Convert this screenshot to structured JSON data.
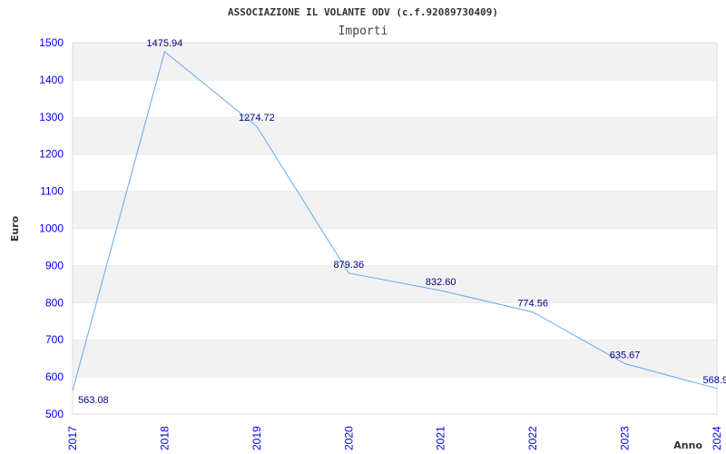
{
  "chart_data": {
    "type": "line",
    "title": "ASSOCIAZIONE IL VOLANTE ODV (c.f.92089730409)",
    "subtitle": "Importi",
    "xlabel": "Anno",
    "ylabel": "Euro",
    "categories": [
      "2017",
      "2018",
      "2019",
      "2020",
      "2021",
      "2022",
      "2023",
      "2024"
    ],
    "series": [
      {
        "name": "Importi",
        "values": [
          563.08,
          1475.94,
          1274.72,
          879.36,
          832.6,
          774.56,
          635.67,
          568.9
        ]
      }
    ],
    "data_labels": [
      "563.08",
      "1475.94",
      "1274.72",
      "879.36",
      "832.60",
      "774.56",
      "635.67",
      "568.9"
    ],
    "ylim": [
      500,
      1500
    ],
    "yticks": [
      500,
      600,
      700,
      800,
      900,
      1000,
      1100,
      1200,
      1300,
      1400,
      1500
    ],
    "grid": true,
    "colors": {
      "line": "#66aaee",
      "band": "#f2f2f2",
      "tick": "#0000ee",
      "label": "#000080"
    }
  }
}
